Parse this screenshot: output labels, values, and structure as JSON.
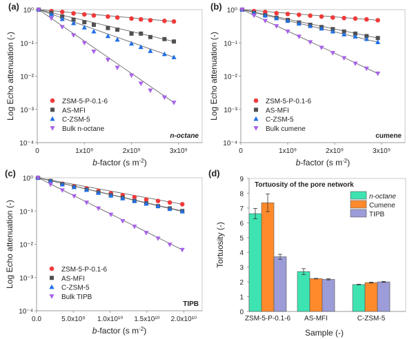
{
  "chart_data": [
    {
      "panel_label": "(a)",
      "type": "scatter",
      "y_scale": "log",
      "ylabel": "Log Echo attenuation (-)",
      "xlabel_italic": "b",
      "xlabel_rest": "-factor (s m",
      "xlabel_sup": "-2",
      "xlabel_close": ")",
      "annotation": "n-octane",
      "xlim": [
        0,
        3500000000.0
      ],
      "ylim": [
        0.0001,
        1
      ],
      "x_ticks": [
        {
          "v": 0,
          "label": "0"
        },
        {
          "v": 1000000000.0,
          "label": "1x10⁹"
        },
        {
          "v": 2000000000.0,
          "label": "2x10⁹"
        },
        {
          "v": 3000000000.0,
          "label": "3x10⁹"
        }
      ],
      "y_ticks": [
        {
          "v": 1,
          "label": "10⁰"
        },
        {
          "v": 0.1,
          "label": "10⁻¹"
        },
        {
          "v": 0.01,
          "label": "10⁻²"
        },
        {
          "v": 0.001,
          "label": "10⁻³"
        },
        {
          "v": 0.0001,
          "label": "10⁻⁴"
        }
      ],
      "legend_position": "lower-left",
      "x": [
        30000000.0,
        300000000.0,
        530000000.0,
        770000000.0,
        1000000000.0,
        1200000000.0,
        1500000000.0,
        1700000000.0,
        2000000000.0,
        2200000000.0,
        2400000000.0,
        2700000000.0,
        2900000000.0
      ],
      "series": [
        {
          "name": "ZSM-5-P-0.1-6",
          "marker": "circle",
          "color": "#f03a3a",
          "values": [
            1,
            0.9,
            0.85,
            0.77,
            0.72,
            0.67,
            0.62,
            0.58,
            0.54,
            0.51,
            0.48,
            0.46,
            0.44
          ]
        },
        {
          "name": "AS-MFI",
          "marker": "square",
          "color": "#505050",
          "values": [
            1,
            0.8,
            0.62,
            0.5,
            0.42,
            0.35,
            0.28,
            0.25,
            0.19,
            0.19,
            0.15,
            0.13,
            0.11
          ]
        },
        {
          "name": "C-ZSM-5",
          "marker": "triangle-up",
          "color": "#1f6fe5",
          "values": [
            1,
            0.72,
            0.52,
            0.39,
            0.29,
            0.22,
            0.16,
            0.125,
            0.095,
            0.075,
            0.057,
            0.046,
            0.037
          ]
        },
        {
          "name": "Bulk n-octane",
          "marker": "triangle-down",
          "color": "#a763e8",
          "values": [
            1,
            0.55,
            0.3,
            0.17,
            0.1,
            0.055,
            0.031,
            0.018,
            0.0105,
            0.006,
            0.0037,
            0.0023,
            0.0016
          ]
        }
      ]
    },
    {
      "panel_label": "(b)",
      "type": "scatter",
      "y_scale": "log",
      "ylabel": "Log Echo attenuation (-)",
      "xlabel_italic": "b",
      "xlabel_rest": "-factor (s m",
      "xlabel_sup": "-2",
      "xlabel_close": ")",
      "annotation": "cumene",
      "xlim": [
        0,
        3500000000.0
      ],
      "ylim": [
        0.0001,
        1
      ],
      "x_ticks": [
        {
          "v": 0,
          "label": "0"
        },
        {
          "v": 1000000000.0,
          "label": "1x10⁹"
        },
        {
          "v": 2000000000.0,
          "label": "2x10⁹"
        },
        {
          "v": 3000000000.0,
          "label": "3x10⁹"
        }
      ],
      "y_ticks": [
        {
          "v": 1,
          "label": "10⁰"
        },
        {
          "v": 0.1,
          "label": "10⁻¹"
        },
        {
          "v": 0.01,
          "label": "10⁻²"
        },
        {
          "v": 0.001,
          "label": "10⁻³"
        },
        {
          "v": 0.0001,
          "label": "10⁻⁴"
        }
      ],
      "legend_position": "lower-left",
      "x": [
        30000000.0,
        280000000.0,
        520000000.0,
        760000000.0,
        1000000000.0,
        1240000000.0,
        1480000000.0,
        1720000000.0,
        1960000000.0,
        2200000000.0,
        2440000000.0,
        2680000000.0,
        2920000000.0
      ],
      "series": [
        {
          "name": "ZSM-5-P-0.1-6",
          "marker": "circle",
          "color": "#f03a3a",
          "values": [
            1,
            0.9,
            0.85,
            0.78,
            0.74,
            0.7,
            0.66,
            0.62,
            0.58,
            0.56,
            0.54,
            0.51,
            0.48
          ]
        },
        {
          "name": "AS-MFI",
          "marker": "square",
          "color": "#505050",
          "values": [
            1,
            0.8,
            0.68,
            0.57,
            0.49,
            0.41,
            0.35,
            0.3,
            0.26,
            0.22,
            0.19,
            0.16,
            0.14
          ]
        },
        {
          "name": "C-ZSM-5",
          "marker": "triangle-up",
          "color": "#1f6fe5",
          "values": [
            1,
            0.79,
            0.66,
            0.55,
            0.46,
            0.38,
            0.32,
            0.27,
            0.22,
            0.18,
            0.155,
            0.13,
            0.105
          ]
        },
        {
          "name": "Bulk cumene",
          "marker": "triangle-down",
          "color": "#a763e8",
          "values": [
            1,
            0.67,
            0.46,
            0.32,
            0.22,
            0.155,
            0.105,
            0.072,
            0.05,
            0.035,
            0.024,
            0.017,
            0.012
          ]
        }
      ]
    },
    {
      "panel_label": "(c)",
      "type": "scatter",
      "y_scale": "log",
      "ylabel": "Log Echo attenuation (-)",
      "xlabel_italic": "b",
      "xlabel_rest": "-factor (s m",
      "xlabel_sup": "-2",
      "xlabel_close": ")",
      "annotation": "TIPB",
      "xlim": [
        0,
        22500000000.0
      ],
      "ylim": [
        0.0001,
        1
      ],
      "x_ticks": [
        {
          "v": 0,
          "label": "0.0"
        },
        {
          "v": 5000000000.0,
          "label": "5.0x10⁹"
        },
        {
          "v": 10000000000.0,
          "label": "1.0x10¹⁰"
        },
        {
          "v": 15000000000.0,
          "label": "1.5x10¹⁰"
        },
        {
          "v": 20000000000.0,
          "label": "2.0x10¹⁰"
        }
      ],
      "y_ticks": [
        {
          "v": 1,
          "label": "10⁰"
        },
        {
          "v": 0.1,
          "label": "10⁻¹"
        },
        {
          "v": 0.01,
          "label": "10⁻²"
        },
        {
          "v": 0.001,
          "label": "10⁻³"
        },
        {
          "v": 0.0001,
          "label": "10⁻⁴"
        }
      ],
      "legend_position": "lower-left",
      "x": [
        200000000.0,
        1900000000.0,
        3500000000.0,
        5100000000.0,
        6800000000.0,
        8400000000.0,
        10100000000.0,
        11700000000.0,
        13300000000.0,
        14900000000.0,
        16500000000.0,
        18100000000.0,
        19800000000.0
      ],
      "series": [
        {
          "name": "ZSM-5-P-0.1-6",
          "marker": "circle",
          "color": "#f03a3a",
          "values": [
            1,
            0.8,
            0.66,
            0.56,
            0.48,
            0.4,
            0.34,
            0.3,
            0.26,
            0.22,
            0.2,
            0.18,
            0.16
          ]
        },
        {
          "name": "AS-MFI",
          "marker": "square",
          "color": "#505050",
          "values": [
            1,
            0.8,
            0.64,
            0.53,
            0.44,
            0.36,
            0.3,
            0.25,
            0.2,
            0.17,
            0.14,
            0.12,
            0.1
          ]
        },
        {
          "name": "C-ZSM-5",
          "marker": "triangle-up",
          "color": "#1f6fe5",
          "values": [
            1,
            0.79,
            0.63,
            0.52,
            0.43,
            0.35,
            0.29,
            0.24,
            0.2,
            0.165,
            0.14,
            0.115,
            0.097
          ]
        },
        {
          "name": "Bulk TIPB",
          "marker": "triangle-down",
          "color": "#a763e8",
          "values": [
            1,
            0.63,
            0.42,
            0.28,
            0.18,
            0.12,
            0.078,
            0.05,
            0.034,
            0.022,
            0.015,
            0.0098,
            0.0068
          ]
        }
      ]
    },
    {
      "panel_label": "(d)",
      "type": "bar",
      "title": "Tortuosity of the pore network",
      "ylabel": "Tortuosity (-)",
      "xlabel": "Sample (-)",
      "ylim": [
        0,
        9
      ],
      "y_ticks": [
        0,
        1,
        2,
        3,
        4,
        5,
        6,
        7,
        8,
        9
      ],
      "legend_position": "top-right",
      "categories": [
        "ZSM-5-P-0.1-6",
        "AS-MFI",
        "C-ZSM-5"
      ],
      "series": [
        {
          "name": "n-octane",
          "color": "#3ee3b2",
          "values": [
            6.62,
            2.7,
            1.82
          ],
          "errors": [
            0.35,
            0.2,
            0.02
          ]
        },
        {
          "name": "Cumene",
          "color": "#ff8a2b",
          "values": [
            7.35,
            2.22,
            1.95
          ],
          "errors": [
            0.6,
            0.02,
            0.03
          ]
        },
        {
          "name": "TIPB",
          "color": "#9c9cd8",
          "values": [
            3.7,
            2.17,
            2.0
          ],
          "errors": [
            0.17,
            0.04,
            0.03
          ]
        }
      ]
    }
  ]
}
